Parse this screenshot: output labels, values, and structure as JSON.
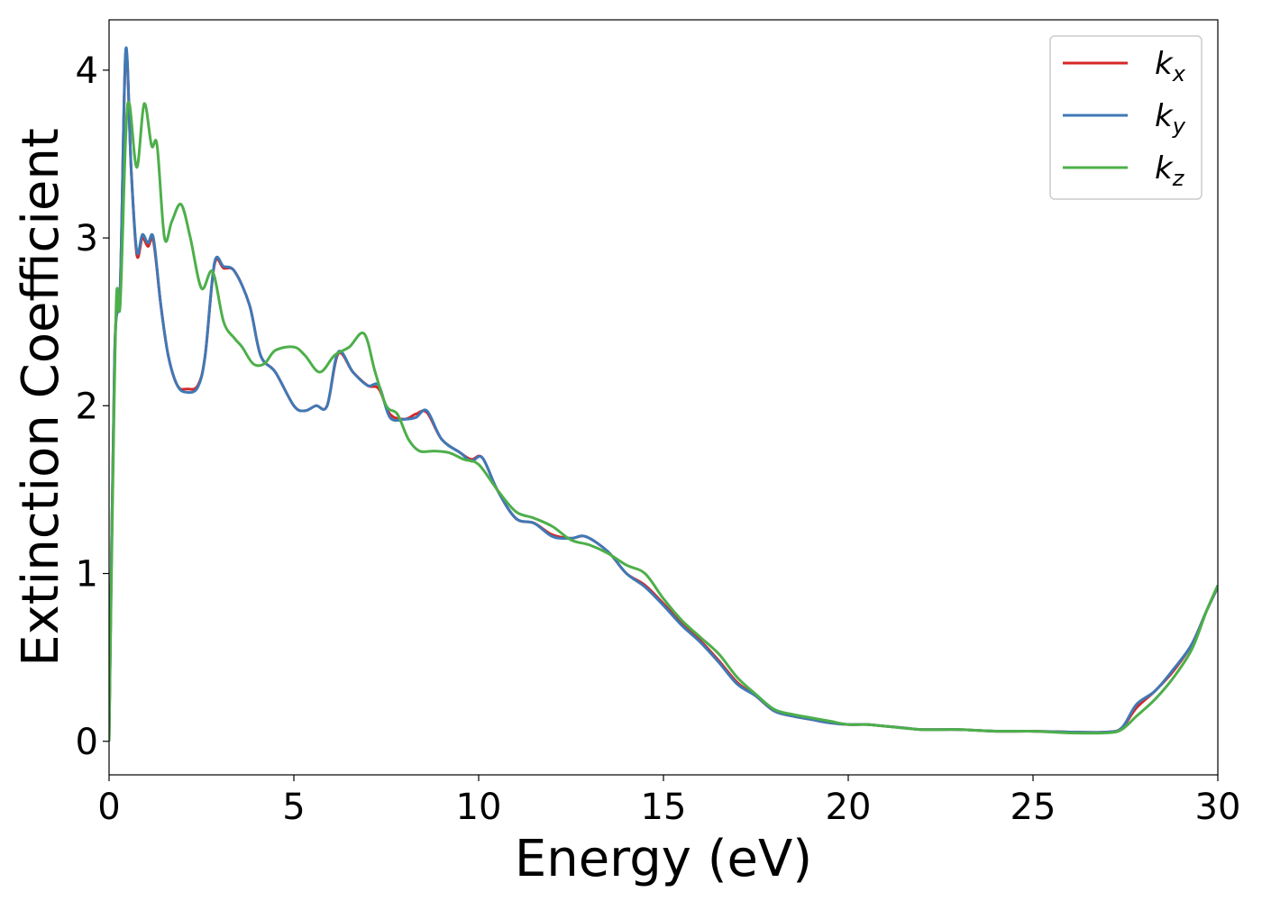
{
  "chart_data": {
    "type": "line",
    "title": "",
    "xlabel": "Energy (eV)",
    "ylabel": "Extinction Coefficient",
    "xlim": [
      0,
      30
    ],
    "ylim": [
      -0.2,
      4.3
    ],
    "xticks": [
      0,
      5,
      10,
      15,
      20,
      25,
      30
    ],
    "yticks": [
      0,
      1,
      2,
      3,
      4
    ],
    "grid": false,
    "legend": "top-right",
    "series": [
      {
        "name": "kx",
        "label_main": "k",
        "label_sub": "x",
        "color": "#d62728",
        "points": [
          [
            0,
            0
          ],
          [
            0.15,
            2.3
          ],
          [
            0.3,
            2.7
          ],
          [
            0.45,
            4.1
          ],
          [
            0.6,
            3.4
          ],
          [
            0.75,
            2.9
          ],
          [
            0.9,
            3.0
          ],
          [
            1.05,
            2.95
          ],
          [
            1.2,
            2.98
          ],
          [
            1.4,
            2.6
          ],
          [
            1.6,
            2.3
          ],
          [
            1.85,
            2.12
          ],
          [
            2.1,
            2.1
          ],
          [
            2.4,
            2.12
          ],
          [
            2.6,
            2.3
          ],
          [
            2.85,
            2.84
          ],
          [
            3.1,
            2.82
          ],
          [
            3.4,
            2.8
          ],
          [
            3.8,
            2.6
          ],
          [
            4.1,
            2.3
          ],
          [
            4.5,
            2.2
          ],
          [
            5,
            2.0
          ],
          [
            5.3,
            1.97
          ],
          [
            5.6,
            2.0
          ],
          [
            5.9,
            2.0
          ],
          [
            6.2,
            2.31
          ],
          [
            6.6,
            2.2
          ],
          [
            7,
            2.12
          ],
          [
            7.3,
            2.1
          ],
          [
            7.6,
            1.95
          ],
          [
            8,
            1.92
          ],
          [
            8.3,
            1.95
          ],
          [
            8.6,
            1.96
          ],
          [
            9,
            1.8
          ],
          [
            9.5,
            1.72
          ],
          [
            9.8,
            1.68
          ],
          [
            10.1,
            1.69
          ],
          [
            10.5,
            1.5
          ],
          [
            11,
            1.33
          ],
          [
            11.5,
            1.3
          ],
          [
            12,
            1.23
          ],
          [
            12.5,
            1.21
          ],
          [
            12.9,
            1.22
          ],
          [
            13.5,
            1.13
          ],
          [
            14,
            1.0
          ],
          [
            14.5,
            0.93
          ],
          [
            15,
            0.82
          ],
          [
            15.5,
            0.7
          ],
          [
            16,
            0.6
          ],
          [
            16.5,
            0.48
          ],
          [
            17,
            0.35
          ],
          [
            17.5,
            0.27
          ],
          [
            18,
            0.18
          ],
          [
            18.5,
            0.15
          ],
          [
            19,
            0.13
          ],
          [
            19.5,
            0.11
          ],
          [
            20,
            0.1
          ],
          [
            20.5,
            0.1
          ],
          [
            21,
            0.09
          ],
          [
            21.5,
            0.08
          ],
          [
            22,
            0.07
          ],
          [
            23,
            0.07
          ],
          [
            24,
            0.06
          ],
          [
            25,
            0.06
          ],
          [
            26,
            0.055
          ],
          [
            27,
            0.055
          ],
          [
            27.4,
            0.08
          ],
          [
            27.8,
            0.2
          ],
          [
            28.3,
            0.3
          ],
          [
            28.8,
            0.42
          ],
          [
            29.3,
            0.58
          ],
          [
            29.7,
            0.78
          ],
          [
            30,
            0.92
          ]
        ]
      },
      {
        "name": "ky",
        "label_main": "k",
        "label_sub": "y",
        "color": "#3f79b6",
        "points": [
          [
            0,
            0
          ],
          [
            0.15,
            2.3
          ],
          [
            0.3,
            2.7
          ],
          [
            0.45,
            4.12
          ],
          [
            0.6,
            3.4
          ],
          [
            0.75,
            2.92
          ],
          [
            0.9,
            3.02
          ],
          [
            1.05,
            2.97
          ],
          [
            1.2,
            3.0
          ],
          [
            1.4,
            2.6
          ],
          [
            1.6,
            2.3
          ],
          [
            1.85,
            2.12
          ],
          [
            2.1,
            2.08
          ],
          [
            2.4,
            2.11
          ],
          [
            2.6,
            2.3
          ],
          [
            2.85,
            2.85
          ],
          [
            3.1,
            2.83
          ],
          [
            3.4,
            2.8
          ],
          [
            3.8,
            2.6
          ],
          [
            4.1,
            2.3
          ],
          [
            4.5,
            2.2
          ],
          [
            5,
            2.0
          ],
          [
            5.3,
            1.97
          ],
          [
            5.6,
            2.0
          ],
          [
            5.9,
            2.0
          ],
          [
            6.2,
            2.32
          ],
          [
            6.6,
            2.2
          ],
          [
            7,
            2.12
          ],
          [
            7.3,
            2.12
          ],
          [
            7.6,
            1.93
          ],
          [
            8,
            1.92
          ],
          [
            8.3,
            1.93
          ],
          [
            8.6,
            1.97
          ],
          [
            9,
            1.8
          ],
          [
            9.5,
            1.72
          ],
          [
            9.8,
            1.67
          ],
          [
            10.1,
            1.69
          ],
          [
            10.5,
            1.5
          ],
          [
            11,
            1.33
          ],
          [
            11.5,
            1.3
          ],
          [
            12,
            1.22
          ],
          [
            12.5,
            1.21
          ],
          [
            12.9,
            1.22
          ],
          [
            13.5,
            1.13
          ],
          [
            14,
            1.0
          ],
          [
            14.5,
            0.92
          ],
          [
            15,
            0.81
          ],
          [
            15.5,
            0.69
          ],
          [
            16,
            0.59
          ],
          [
            16.5,
            0.47
          ],
          [
            17,
            0.34
          ],
          [
            17.5,
            0.27
          ],
          [
            18,
            0.18
          ],
          [
            18.5,
            0.15
          ],
          [
            19,
            0.13
          ],
          [
            19.5,
            0.11
          ],
          [
            20,
            0.1
          ],
          [
            20.5,
            0.1
          ],
          [
            21,
            0.09
          ],
          [
            21.5,
            0.08
          ],
          [
            22,
            0.07
          ],
          [
            23,
            0.07
          ],
          [
            24,
            0.06
          ],
          [
            25,
            0.06
          ],
          [
            26,
            0.055
          ],
          [
            27,
            0.055
          ],
          [
            27.4,
            0.08
          ],
          [
            27.8,
            0.22
          ],
          [
            28.3,
            0.3
          ],
          [
            28.8,
            0.43
          ],
          [
            29.3,
            0.58
          ],
          [
            29.7,
            0.78
          ],
          [
            30,
            0.92
          ]
        ]
      },
      {
        "name": "kz",
        "label_main": "k",
        "label_sub": "z",
        "color": "#4daf4a",
        "points": [
          [
            0,
            0
          ],
          [
            0.1,
            1.5
          ],
          [
            0.2,
            2.65
          ],
          [
            0.3,
            2.6
          ],
          [
            0.45,
            3.6
          ],
          [
            0.55,
            3.8
          ],
          [
            0.75,
            3.42
          ],
          [
            0.95,
            3.8
          ],
          [
            1.15,
            3.55
          ],
          [
            1.3,
            3.55
          ],
          [
            1.5,
            3.0
          ],
          [
            1.7,
            3.1
          ],
          [
            1.95,
            3.2
          ],
          [
            2.2,
            3.0
          ],
          [
            2.5,
            2.7
          ],
          [
            2.8,
            2.8
          ],
          [
            3.1,
            2.5
          ],
          [
            3.4,
            2.4
          ],
          [
            3.6,
            2.35
          ],
          [
            3.9,
            2.25
          ],
          [
            4.2,
            2.25
          ],
          [
            4.5,
            2.33
          ],
          [
            5,
            2.35
          ],
          [
            5.3,
            2.3
          ],
          [
            5.7,
            2.2
          ],
          [
            6.1,
            2.3
          ],
          [
            6.5,
            2.35
          ],
          [
            6.9,
            2.43
          ],
          [
            7.2,
            2.2
          ],
          [
            7.5,
            2.0
          ],
          [
            7.8,
            1.95
          ],
          [
            8.1,
            1.8
          ],
          [
            8.4,
            1.73
          ],
          [
            8.8,
            1.73
          ],
          [
            9.2,
            1.72
          ],
          [
            9.6,
            1.68
          ],
          [
            10,
            1.65
          ],
          [
            10.5,
            1.5
          ],
          [
            11,
            1.37
          ],
          [
            11.5,
            1.33
          ],
          [
            12,
            1.28
          ],
          [
            12.5,
            1.2
          ],
          [
            13,
            1.17
          ],
          [
            13.5,
            1.12
          ],
          [
            14,
            1.05
          ],
          [
            14.5,
            1.0
          ],
          [
            15,
            0.85
          ],
          [
            15.5,
            0.72
          ],
          [
            16,
            0.62
          ],
          [
            16.5,
            0.52
          ],
          [
            17,
            0.38
          ],
          [
            17.5,
            0.28
          ],
          [
            18,
            0.19
          ],
          [
            18.5,
            0.16
          ],
          [
            19,
            0.14
          ],
          [
            19.5,
            0.12
          ],
          [
            20,
            0.1
          ],
          [
            20.5,
            0.1
          ],
          [
            21,
            0.09
          ],
          [
            22,
            0.07
          ],
          [
            23,
            0.07
          ],
          [
            24,
            0.06
          ],
          [
            25,
            0.06
          ],
          [
            26,
            0.05
          ],
          [
            27,
            0.05
          ],
          [
            27.4,
            0.07
          ],
          [
            27.8,
            0.15
          ],
          [
            28.3,
            0.25
          ],
          [
            28.8,
            0.38
          ],
          [
            29.3,
            0.55
          ],
          [
            29.7,
            0.78
          ],
          [
            30,
            0.93
          ]
        ]
      }
    ]
  }
}
